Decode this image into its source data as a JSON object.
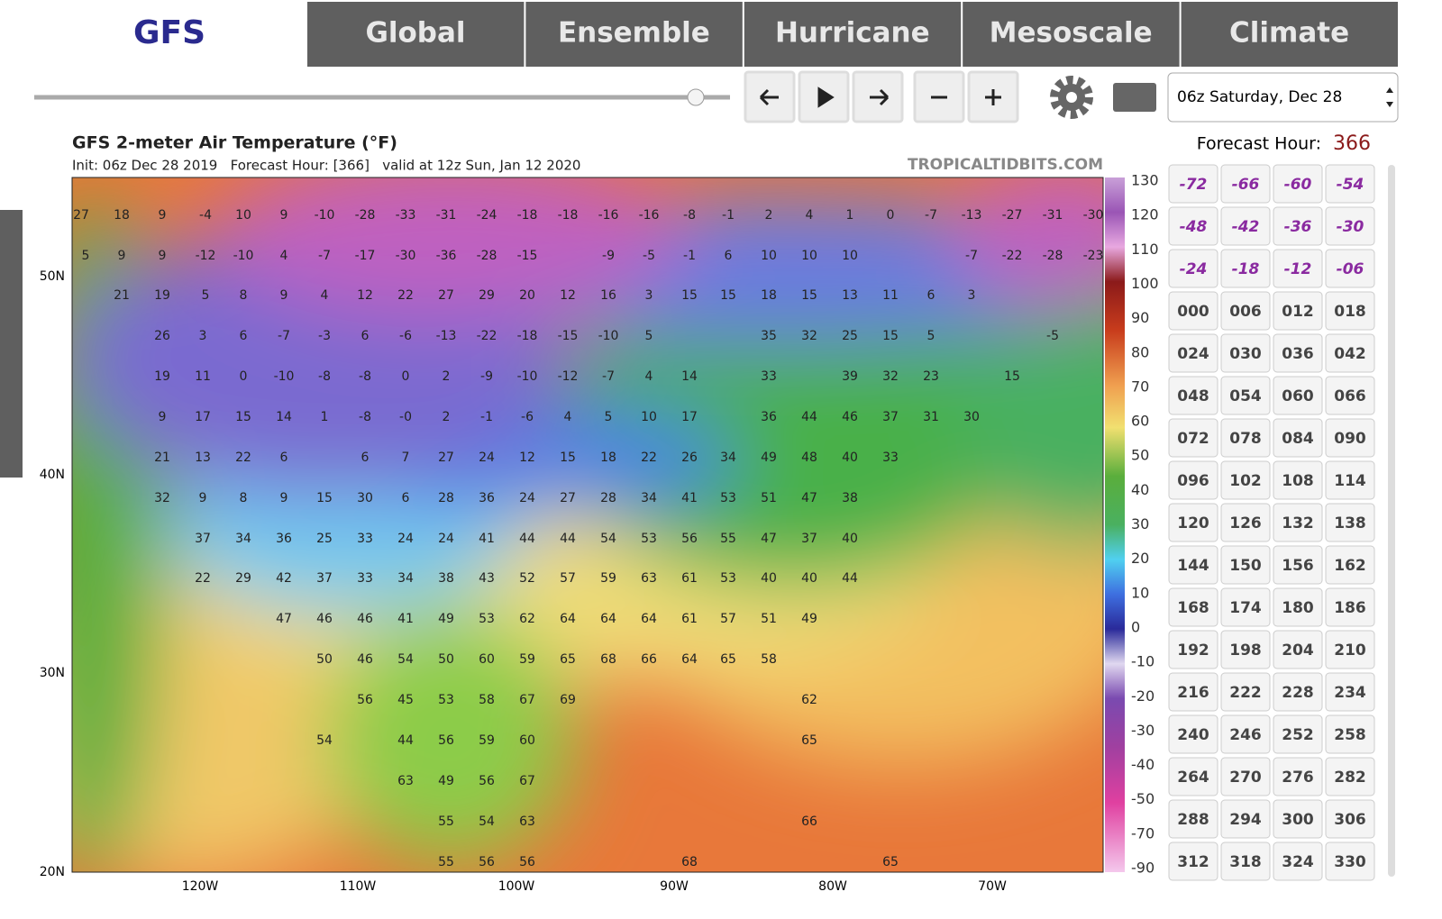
{
  "tabs": {
    "brand": "GFS",
    "items": [
      "Global",
      "Ensemble",
      "Hurricane",
      "Mesoscale",
      "Climate"
    ]
  },
  "controls": {
    "run_select": "06z Saturday, Dec 28",
    "forecast_hour_label": "Forecast Hour:",
    "forecast_hour": "366"
  },
  "map": {
    "title": "GFS 2-meter Air Temperature (°F)",
    "subtitle": "Init: 06z Dec 28 2019   Forecast Hour: [366]   valid at 12z Sun, Jan 12 2020",
    "watermark": "TROPICALTIDBITS.COM",
    "lat_labels": [
      "50N",
      "40N",
      "30N",
      "20N"
    ],
    "lon_labels": [
      "120W",
      "110W",
      "100W",
      "90W",
      "80W",
      "70W"
    ],
    "colorbar": [
      "130",
      "120",
      "110",
      "100",
      "90",
      "80",
      "70",
      "60",
      "50",
      "40",
      "30",
      "20",
      "10",
      "0",
      "-10",
      "-20",
      "-30",
      "-40",
      "-50",
      "-70",
      "-90"
    ],
    "labels": [
      [
        "27",
        "18",
        "9",
        "-4",
        "10",
        "9",
        "-10",
        "-28",
        "-33",
        "-31",
        "-24",
        "-18",
        "-18",
        "-16",
        "-16",
        "-8",
        "-1",
        "2",
        "4",
        "1",
        "0",
        "-7",
        "-13",
        "-27",
        "-31",
        "-30"
      ],
      [
        "5",
        "9",
        "9",
        "-12",
        "-10",
        "4",
        "-7",
        "-17",
        "-30",
        "-36",
        "-28",
        "-15",
        "-9",
        "-5",
        "-1",
        "6",
        "10",
        "10",
        "10",
        "-7",
        "-22",
        "-28",
        "-23"
      ],
      [
        "21",
        "19",
        "5",
        "8",
        "9",
        "4",
        "12",
        "22",
        "27",
        "29",
        "20",
        "12",
        "16",
        "3",
        "15",
        "15",
        "18",
        "15",
        "13",
        "11",
        "6",
        "3"
      ],
      [
        "26",
        "3",
        "6",
        "-7",
        "-3",
        "6",
        "-6",
        "-13",
        "-22",
        "-18",
        "-15",
        "-10",
        "5",
        "35",
        "32",
        "25",
        "15",
        "5",
        "-5"
      ],
      [
        "19",
        "11",
        "0",
        "-10",
        "-8",
        "-8",
        "0",
        "2",
        "-9",
        "-10",
        "-12",
        "-7",
        "4",
        "14",
        "33",
        "39",
        "32",
        "23",
        "15"
      ],
      [
        "9",
        "17",
        "15",
        "14",
        "1",
        "-8",
        "-0",
        "2",
        "-1",
        "-6",
        "4",
        "5",
        "10",
        "17",
        "36",
        "44",
        "46",
        "37",
        "31",
        "30"
      ],
      [
        "21",
        "13",
        "22",
        "6",
        "6",
        "7",
        "27",
        "24",
        "12",
        "15",
        "18",
        "22",
        "26",
        "34",
        "49",
        "48",
        "40",
        "33"
      ],
      [
        "32",
        "9",
        "8",
        "9",
        "15",
        "30",
        "6",
        "28",
        "36",
        "24",
        "27",
        "28",
        "34",
        "41",
        "53",
        "51",
        "47",
        "38"
      ],
      [
        "37",
        "34",
        "36",
        "25",
        "33",
        "24",
        "24",
        "41",
        "44",
        "44",
        "54",
        "53",
        "56",
        "55",
        "47",
        "37",
        "40"
      ],
      [
        "22",
        "29",
        "42",
        "37",
        "33",
        "34",
        "38",
        "43",
        "52",
        "57",
        "59",
        "63",
        "61",
        "53",
        "40",
        "40",
        "44"
      ],
      [
        "47",
        "46",
        "46",
        "41",
        "49",
        "53",
        "62",
        "64",
        "64",
        "64",
        "61",
        "57",
        "51",
        "49"
      ],
      [
        "50",
        "46",
        "54",
        "50",
        "60",
        "59",
        "65",
        "68",
        "66",
        "64",
        "65",
        "58"
      ],
      [
        "56",
        "45",
        "53",
        "58",
        "67",
        "69",
        "62"
      ],
      [
        "54",
        "44",
        "56",
        "59",
        "60",
        "65"
      ],
      [
        "63",
        "49",
        "56",
        "67"
      ],
      [
        "55",
        "54",
        "63",
        "66"
      ],
      [
        "55",
        "56",
        "56",
        "68",
        "65"
      ]
    ]
  },
  "hours": [
    "-72",
    "-66",
    "-60",
    "-54",
    "-48",
    "-42",
    "-36",
    "-30",
    "-24",
    "-18",
    "-12",
    "-06",
    "000",
    "006",
    "012",
    "018",
    "024",
    "030",
    "036",
    "042",
    "048",
    "054",
    "060",
    "066",
    "072",
    "078",
    "084",
    "090",
    "096",
    "102",
    "108",
    "114",
    "120",
    "126",
    "132",
    "138",
    "144",
    "150",
    "156",
    "162",
    "168",
    "174",
    "180",
    "186",
    "192",
    "198",
    "204",
    "210",
    "216",
    "222",
    "228",
    "234",
    "240",
    "246",
    "252",
    "258",
    "264",
    "270",
    "276",
    "282",
    "288",
    "294",
    "300",
    "306",
    "312",
    "318",
    "324",
    "330"
  ]
}
